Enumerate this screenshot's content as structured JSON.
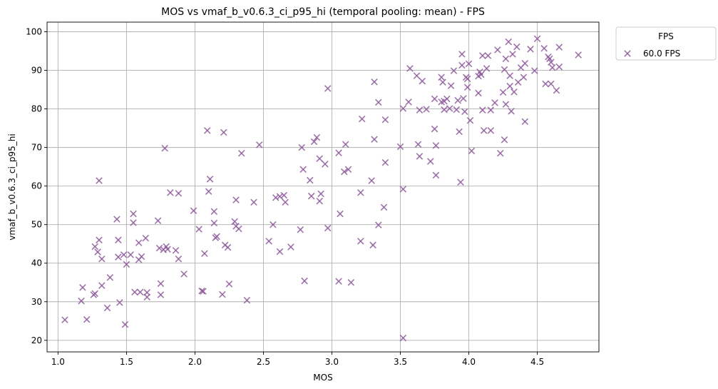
{
  "chart_data": {
    "type": "scatter",
    "title": "MOS vs vmaf_b_v0.6.3_ci_p95_hi (temporal pooling: mean) - FPS",
    "xlabel": "MOS",
    "ylabel": "vmaf_b_v0.6.3_ci_p95_hi",
    "xlim": [
      0.92,
      4.95
    ],
    "ylim": [
      17,
      102.5
    ],
    "xticks": [
      1.0,
      1.5,
      2.0,
      2.5,
      3.0,
      3.5,
      4.0,
      4.5
    ],
    "xtick_labels": [
      "1.0",
      "1.5",
      "2.0",
      "2.5",
      "3.0",
      "3.5",
      "4.0",
      "4.5"
    ],
    "yticks": [
      20,
      30,
      40,
      50,
      60,
      70,
      80,
      90,
      100
    ],
    "ytick_labels": [
      "20",
      "30",
      "40",
      "50",
      "60",
      "70",
      "80",
      "90",
      "100"
    ],
    "grid": true,
    "legend": {
      "title": "FPS",
      "placement": "outside-top-right",
      "entries": [
        "60.0 FPS"
      ]
    },
    "marker": "x",
    "color": "#8e5a9c",
    "series": [
      {
        "name": "60.0 FPS",
        "points": [
          [
            1.05,
            25.3
          ],
          [
            1.17,
            30.2
          ],
          [
            1.18,
            33.7
          ],
          [
            1.21,
            25.4
          ],
          [
            1.26,
            31.8
          ],
          [
            1.27,
            32.1
          ],
          [
            1.27,
            44.3
          ],
          [
            1.29,
            42.9
          ],
          [
            1.3,
            46.0
          ],
          [
            1.3,
            61.4
          ],
          [
            1.32,
            41.1
          ],
          [
            1.32,
            34.2
          ],
          [
            1.36,
            28.4
          ],
          [
            1.38,
            36.3
          ],
          [
            1.43,
            51.4
          ],
          [
            1.44,
            46.0
          ],
          [
            1.44,
            41.6
          ],
          [
            1.45,
            29.8
          ],
          [
            1.48,
            42.2
          ],
          [
            1.49,
            24.1
          ],
          [
            1.5,
            39.7
          ],
          [
            1.53,
            42.2
          ],
          [
            1.55,
            52.8
          ],
          [
            1.55,
            50.5
          ],
          [
            1.56,
            32.5
          ],
          [
            1.59,
            45.3
          ],
          [
            1.59,
            40.9
          ],
          [
            1.6,
            32.5
          ],
          [
            1.61,
            41.7
          ],
          [
            1.64,
            46.5
          ],
          [
            1.65,
            32.4
          ],
          [
            1.65,
            31.2
          ],
          [
            1.73,
            51.0
          ],
          [
            1.74,
            43.9
          ],
          [
            1.75,
            34.7
          ],
          [
            1.75,
            31.8
          ],
          [
            1.77,
            43.5
          ],
          [
            1.78,
            69.8
          ],
          [
            1.79,
            44.3
          ],
          [
            1.8,
            43.6
          ],
          [
            1.82,
            58.3
          ],
          [
            1.86,
            43.3
          ],
          [
            1.88,
            41.1
          ],
          [
            1.88,
            58.1
          ],
          [
            1.92,
            37.2
          ],
          [
            1.99,
            53.6
          ],
          [
            2.03,
            48.8
          ],
          [
            2.05,
            32.8
          ],
          [
            2.06,
            32.7
          ],
          [
            2.07,
            42.5
          ],
          [
            2.09,
            74.4
          ],
          [
            2.1,
            58.6
          ],
          [
            2.11,
            61.8
          ],
          [
            2.14,
            53.4
          ],
          [
            2.14,
            50.4
          ],
          [
            2.15,
            46.6
          ],
          [
            2.16,
            46.9
          ],
          [
            2.2,
            31.9
          ],
          [
            2.21,
            73.9
          ],
          [
            2.22,
            44.7
          ],
          [
            2.24,
            44.1
          ],
          [
            2.25,
            34.6
          ],
          [
            2.29,
            50.8
          ],
          [
            2.3,
            56.4
          ],
          [
            2.3,
            49.6
          ],
          [
            2.32,
            48.9
          ],
          [
            2.34,
            68.5
          ],
          [
            2.38,
            30.4
          ],
          [
            2.43,
            55.8
          ],
          [
            2.47,
            70.7
          ],
          [
            2.54,
            45.7
          ],
          [
            2.57,
            50.0
          ],
          [
            2.59,
            57.0
          ],
          [
            2.62,
            57.3
          ],
          [
            2.62,
            43.0
          ],
          [
            2.65,
            57.6
          ],
          [
            2.66,
            55.8
          ],
          [
            2.7,
            44.2
          ],
          [
            2.77,
            48.7
          ],
          [
            2.78,
            70.0
          ],
          [
            2.79,
            64.3
          ],
          [
            2.8,
            35.4
          ],
          [
            2.84,
            61.5
          ],
          [
            2.85,
            57.4
          ],
          [
            2.87,
            71.5
          ],
          [
            2.89,
            72.6
          ],
          [
            2.91,
            56.1
          ],
          [
            2.91,
            67.1
          ],
          [
            2.92,
            58.0
          ],
          [
            2.95,
            65.7
          ],
          [
            2.97,
            49.1
          ],
          [
            2.97,
            85.3
          ],
          [
            3.05,
            68.6
          ],
          [
            3.05,
            35.3
          ],
          [
            3.06,
            52.8
          ],
          [
            3.09,
            63.7
          ],
          [
            3.1,
            70.8
          ],
          [
            3.12,
            64.3
          ],
          [
            3.14,
            35.0
          ],
          [
            3.21,
            45.7
          ],
          [
            3.21,
            58.3
          ],
          [
            3.22,
            77.4
          ],
          [
            3.29,
            61.4
          ],
          [
            3.3,
            44.7
          ],
          [
            3.31,
            87.0
          ],
          [
            3.31,
            72.1
          ],
          [
            3.34,
            81.7
          ],
          [
            3.34,
            49.9
          ],
          [
            3.38,
            54.5
          ],
          [
            3.39,
            66.1
          ],
          [
            3.39,
            77.2
          ],
          [
            3.5,
            70.2
          ],
          [
            3.52,
            80.1
          ],
          [
            3.52,
            59.2
          ],
          [
            3.52,
            20.6
          ],
          [
            3.56,
            81.8
          ],
          [
            3.57,
            90.5
          ],
          [
            3.62,
            88.6
          ],
          [
            3.63,
            70.8
          ],
          [
            3.64,
            67.7
          ],
          [
            3.64,
            79.7
          ],
          [
            3.66,
            87.2
          ],
          [
            3.69,
            79.9
          ],
          [
            3.72,
            66.4
          ],
          [
            3.75,
            82.6
          ],
          [
            3.75,
            74.8
          ],
          [
            3.76,
            62.8
          ],
          [
            3.76,
            70.5
          ],
          [
            3.8,
            81.8
          ],
          [
            3.8,
            88.2
          ],
          [
            3.81,
            86.9
          ],
          [
            3.82,
            82.0
          ],
          [
            3.82,
            79.8
          ],
          [
            3.84,
            82.6
          ],
          [
            3.86,
            80.1
          ],
          [
            3.87,
            86.0
          ],
          [
            3.89,
            89.9
          ],
          [
            3.91,
            79.8
          ],
          [
            3.92,
            82.2
          ],
          [
            3.93,
            74.1
          ],
          [
            3.94,
            61.0
          ],
          [
            3.95,
            91.3
          ],
          [
            3.95,
            94.2
          ],
          [
            3.96,
            82.7
          ],
          [
            3.97,
            79.3
          ],
          [
            3.98,
            88.2
          ],
          [
            3.99,
            85.6
          ],
          [
            3.99,
            87.8
          ],
          [
            4.0,
            91.7
          ],
          [
            4.01,
            77.0
          ],
          [
            4.02,
            69.1
          ],
          [
            4.07,
            88.5
          ],
          [
            4.07,
            84.1
          ],
          [
            4.08,
            89.6
          ],
          [
            4.09,
            88.9
          ],
          [
            4.1,
            93.8
          ],
          [
            4.1,
            79.7
          ],
          [
            4.11,
            74.4
          ],
          [
            4.13,
            90.5
          ],
          [
            4.14,
            93.8
          ],
          [
            4.16,
            79.7
          ],
          [
            4.16,
            74.4
          ],
          [
            4.19,
            81.6
          ],
          [
            4.21,
            95.3
          ],
          [
            4.23,
            68.5
          ],
          [
            4.25,
            84.3
          ],
          [
            4.26,
            72.0
          ],
          [
            4.26,
            90.2
          ],
          [
            4.27,
            81.2
          ],
          [
            4.27,
            93.0
          ],
          [
            4.29,
            97.4
          ],
          [
            4.3,
            85.9
          ],
          [
            4.3,
            88.6
          ],
          [
            4.31,
            79.4
          ],
          [
            4.32,
            94.2
          ],
          [
            4.33,
            84.4
          ],
          [
            4.35,
            96.1
          ],
          [
            4.36,
            86.9
          ],
          [
            4.38,
            90.7
          ],
          [
            4.4,
            88.2
          ],
          [
            4.41,
            91.8
          ],
          [
            4.41,
            76.7
          ],
          [
            4.45,
            95.5
          ],
          [
            4.48,
            89.9
          ],
          [
            4.5,
            98.2
          ],
          [
            4.55,
            95.7
          ],
          [
            4.56,
            86.5
          ],
          [
            4.58,
            93.5
          ],
          [
            4.59,
            93.0
          ],
          [
            4.6,
            92.1
          ],
          [
            4.6,
            86.5
          ],
          [
            4.61,
            90.7
          ],
          [
            4.64,
            84.8
          ],
          [
            4.66,
            96.0
          ],
          [
            4.66,
            90.9
          ],
          [
            4.8,
            94.0
          ]
        ]
      }
    ]
  }
}
